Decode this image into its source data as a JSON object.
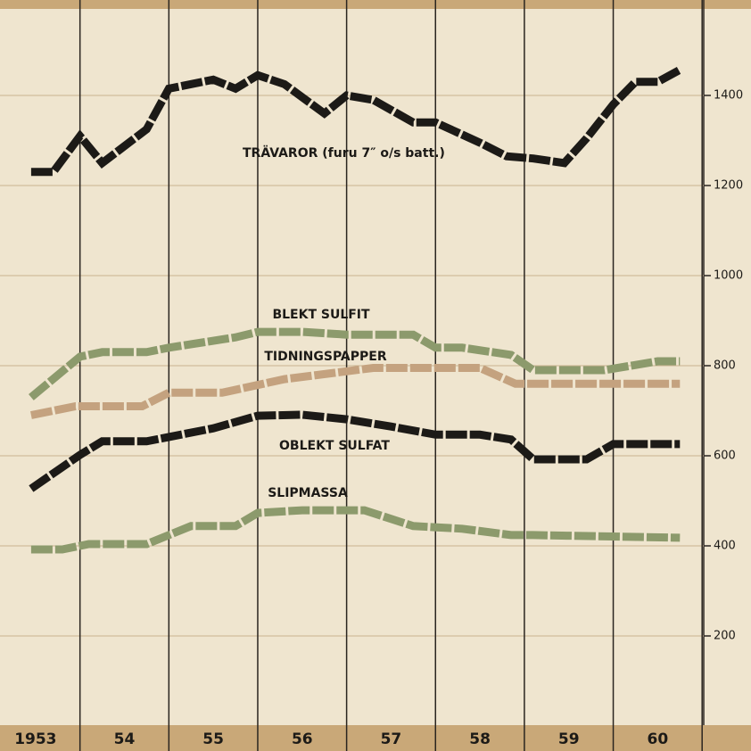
{
  "chart_data": {
    "type": "line",
    "xlim": [
      1953.1,
      1961.55
    ],
    "ylim": [
      0,
      1600
    ],
    "yticks": [
      200,
      400,
      600,
      800,
      1000,
      1200,
      1400
    ],
    "xgrid": [
      1954,
      1955,
      1956,
      1957,
      1958,
      1959,
      1960,
      1961
    ],
    "xticks": [
      {
        "value": 1953.5,
        "label": "1953"
      },
      {
        "value": 1954.5,
        "label": "54"
      },
      {
        "value": 1955.5,
        "label": "55"
      },
      {
        "value": 1956.5,
        "label": "56"
      },
      {
        "value": 1957.5,
        "label": "57"
      },
      {
        "value": 1958.5,
        "label": "58"
      },
      {
        "value": 1959.5,
        "label": "59"
      },
      {
        "value": 1960.5,
        "label": "60"
      }
    ],
    "grid": true,
    "series": [
      {
        "name": "TRÄVAROR (furu 7″ o/s batt.)",
        "color": "#1c1a17",
        "x": [
          1953.45,
          1953.7,
          1954.0,
          1954.25,
          1954.75,
          1955.0,
          1955.5,
          1955.75,
          1956.0,
          1956.3,
          1956.75,
          1957.0,
          1957.3,
          1957.75,
          1958.0,
          1958.5,
          1958.8,
          1959.1,
          1959.45,
          1959.7,
          1960.0,
          1960.25,
          1960.5,
          1960.75
        ],
        "values": [
          1230,
          1230,
          1310,
          1250,
          1325,
          1415,
          1435,
          1415,
          1445,
          1425,
          1360,
          1400,
          1390,
          1340,
          1340,
          1295,
          1265,
          1260,
          1250,
          1305,
          1380,
          1430,
          1430,
          1457
        ]
      },
      {
        "name": "BLEKT SULFIT",
        "color": "#8c9a6c",
        "x": [
          1953.45,
          1954.0,
          1954.25,
          1954.75,
          1955.0,
          1955.75,
          1956.0,
          1956.5,
          1957.0,
          1957.75,
          1958.0,
          1958.3,
          1958.85,
          1959.1,
          1959.9,
          1960.5,
          1960.75
        ],
        "values": [
          730,
          820,
          830,
          830,
          840,
          863,
          875,
          875,
          869,
          869,
          840,
          840,
          824,
          790,
          790,
          810,
          810
        ]
      },
      {
        "name": "TIDNINGSPAPPER",
        "color": "#c4a27f",
        "x": [
          1953.45,
          1953.95,
          1954.7,
          1955.0,
          1955.6,
          1956.3,
          1957.3,
          1958.5,
          1958.9,
          1960.75
        ],
        "values": [
          690,
          710,
          710,
          740,
          740,
          770,
          795,
          795,
          760,
          760
        ]
      },
      {
        "name": "OBLEKT SULFAT",
        "color": "#1c1a17",
        "x": [
          1953.45,
          1954.0,
          1954.25,
          1954.75,
          1955.5,
          1956.0,
          1956.5,
          1957.0,
          1957.5,
          1958.0,
          1958.5,
          1958.85,
          1959.1,
          1959.7,
          1960.0,
          1960.75
        ],
        "values": [
          527,
          602,
          632,
          632,
          661,
          689,
          691,
          681,
          665,
          647,
          647,
          636,
          592,
          592,
          626,
          626
        ]
      },
      {
        "name": "SLIPMASSA",
        "color": "#8c9a6c",
        "x": [
          1953.45,
          1953.8,
          1954.1,
          1954.75,
          1955.25,
          1955.75,
          1956.0,
          1956.5,
          1957.2,
          1957.75,
          1958.3,
          1958.85,
          1959.1,
          1960.75
        ],
        "values": [
          392,
          392,
          404,
          404,
          444,
          444,
          473,
          479,
          479,
          444,
          438,
          424,
          424,
          418
        ]
      }
    ]
  }
}
